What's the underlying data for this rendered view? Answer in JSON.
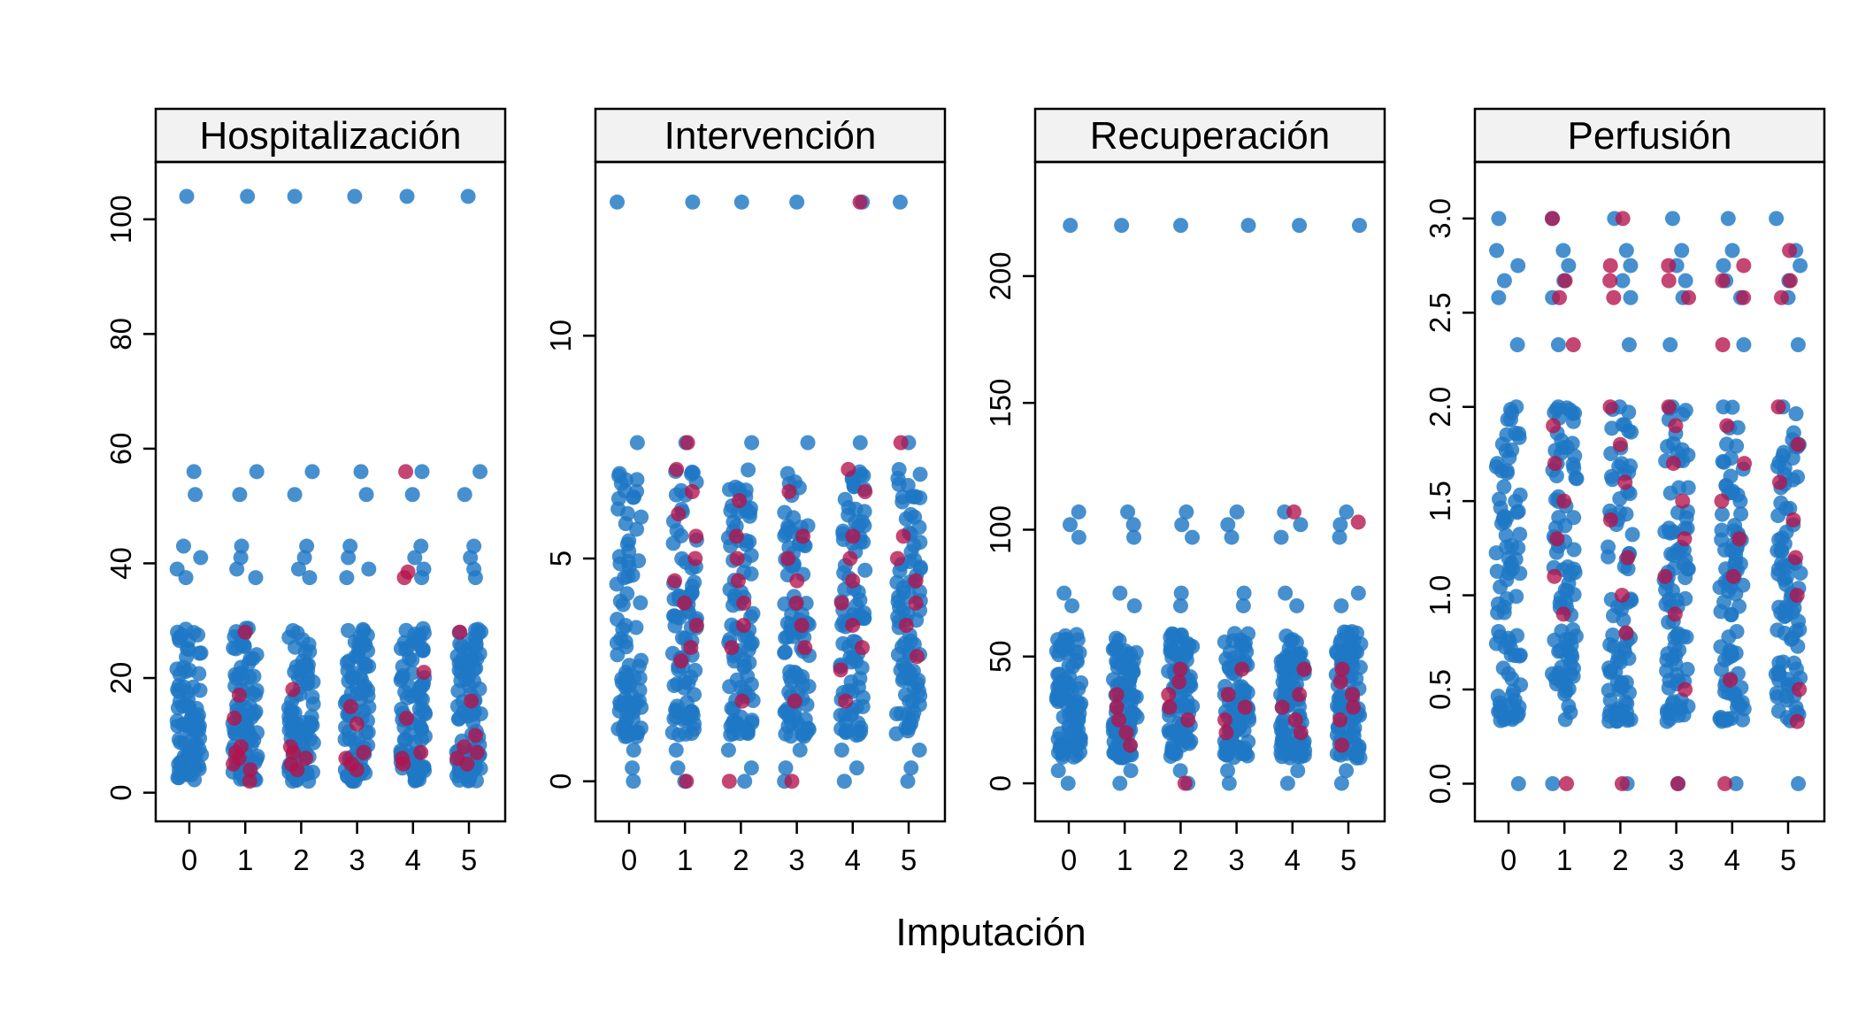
{
  "xlabel": "Imputación",
  "colors": {
    "observed": "#1f77c4",
    "imputed": "#b5124a",
    "strip_fill": "#f2f2f2",
    "frame": "#000000"
  },
  "chart_data": [
    {
      "type": "scatter",
      "title": "Hospitalización",
      "categories": [
        "0",
        "1",
        "2",
        "3",
        "4",
        "5"
      ],
      "ylim": [
        -5,
        110
      ],
      "yticks": [
        0,
        20,
        40,
        60,
        80,
        100
      ],
      "ytick_labels": [
        "0",
        "20",
        "40",
        "60",
        "80",
        "100"
      ],
      "grid": false,
      "observed": {
        "repeated_values": [
          104,
          56,
          52,
          43,
          41,
          39,
          37.5
        ],
        "main_range": [
          2,
          29
        ]
      },
      "imputed": {
        "1": [
          2,
          4,
          5,
          6,
          7,
          8,
          13,
          17,
          28
        ],
        "2": [
          4,
          5,
          6,
          7,
          8,
          18
        ],
        "3": [
          4,
          5,
          6,
          7,
          12,
          15
        ],
        "4": [
          5,
          6,
          7,
          13,
          21,
          37.5,
          38.5,
          56
        ],
        "5": [
          5,
          6,
          7,
          8,
          10,
          16,
          28
        ]
      }
    },
    {
      "type": "scatter",
      "title": "Intervención",
      "categories": [
        "0",
        "1",
        "2",
        "3",
        "4",
        "5"
      ],
      "ylim": [
        -0.9,
        13.9
      ],
      "yticks": [
        0,
        5,
        10
      ],
      "ytick_labels": [
        "0",
        "5",
        "10"
      ],
      "grid": false,
      "observed": {
        "repeated_values": [
          13,
          7.6,
          0.7,
          0.3,
          0
        ],
        "main_range": [
          1,
          7
        ]
      },
      "imputed": {
        "1": [
          0,
          2.7,
          3,
          3.5,
          4,
          4.5,
          5,
          5.5,
          6,
          6.5,
          7,
          7.6
        ],
        "2": [
          0,
          1.8,
          3,
          3.5,
          4,
          4.5,
          5,
          5.5,
          6.3
        ],
        "3": [
          0,
          1.8,
          3,
          3.5,
          4,
          4.5,
          5,
          5.5,
          6.5
        ],
        "4": [
          1.8,
          2.5,
          3,
          3.5,
          4,
          4.5,
          5,
          5.5,
          6.5,
          7,
          13
        ],
        "5": [
          2.8,
          3.5,
          4,
          4.5,
          5,
          5.5,
          7.6
        ]
      }
    },
    {
      "type": "scatter",
      "title": "Recuperación",
      "categories": [
        "0",
        "1",
        "2",
        "3",
        "4",
        "5"
      ],
      "ylim": [
        -15,
        245
      ],
      "yticks": [
        0,
        50,
        100,
        150,
        200
      ],
      "ytick_labels": [
        "0",
        "50",
        "100",
        "150",
        "200"
      ],
      "grid": false,
      "observed": {
        "repeated_values": [
          220,
          107,
          102,
          97,
          75,
          70,
          0,
          5
        ],
        "main_range": [
          10,
          60
        ]
      },
      "imputed": {
        "1": [
          15,
          20,
          25,
          30,
          35
        ],
        "2": [
          0,
          25,
          30,
          35,
          40,
          45
        ],
        "3": [
          20,
          25,
          30,
          35,
          45
        ],
        "4": [
          20,
          25,
          30,
          35,
          45,
          107
        ],
        "5": [
          15,
          25,
          30,
          35,
          40,
          45,
          103
        ]
      }
    },
    {
      "type": "scatter",
      "title": "Perfusión",
      "categories": [
        "0",
        "1",
        "2",
        "3",
        "4",
        "5"
      ],
      "ylim": [
        -0.2,
        3.3
      ],
      "yticks": [
        0,
        0.5,
        1.0,
        1.5,
        2.0,
        2.5,
        3.0
      ],
      "ytick_labels": [
        "0.0",
        "0.5",
        "1.0",
        "1.5",
        "2.0",
        "2.5",
        "3.0"
      ],
      "grid": false,
      "observed": {
        "repeated_values": [
          3.0,
          2.83,
          2.75,
          2.67,
          2.58,
          2.33,
          2.0,
          0
        ],
        "main_range": [
          0.33,
          2.0
        ]
      },
      "imputed": {
        "1": [
          0,
          0.9,
          1.1,
          1.3,
          1.5,
          1.7,
          1.9,
          2.33,
          2.58,
          2.67,
          3.0
        ],
        "2": [
          0,
          0.8,
          1.0,
          1.2,
          1.4,
          1.6,
          1.8,
          2.0,
          2.58,
          2.67,
          2.75,
          3.0
        ],
        "3": [
          0,
          0.5,
          0.9,
          1.1,
          1.3,
          1.5,
          1.7,
          1.9,
          2.0,
          2.58,
          2.67,
          2.75
        ],
        "4": [
          0,
          0.55,
          1.1,
          1.3,
          1.5,
          1.7,
          1.9,
          2.33,
          2.58,
          2.67,
          2.75
        ],
        "5": [
          0.33,
          0.5,
          1.0,
          1.2,
          1.4,
          1.6,
          1.8,
          2.0,
          2.58,
          2.67,
          2.83
        ]
      }
    }
  ]
}
